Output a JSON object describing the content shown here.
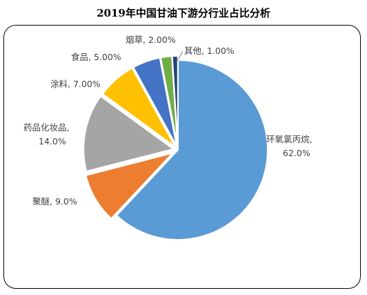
{
  "chart_data": {
    "type": "pie",
    "title": "2019年中国甘油下游分行业占比分析",
    "slices": [
      {
        "name": "环氧氯丙烷",
        "value": 62.0,
        "label": "62.0%",
        "color": "#5B9BD5"
      },
      {
        "name": "聚醚",
        "value": 9.0,
        "label": "9.0%",
        "color": "#ED7D31"
      },
      {
        "name": "药品化妆品",
        "value": 14.0,
        "label": "14.0%",
        "color": "#A5A5A5"
      },
      {
        "name": "涂料",
        "value": 7.0,
        "label": "7.00%",
        "color": "#FFC000"
      },
      {
        "name": "食品",
        "value": 5.0,
        "label": "5.00%",
        "color": "#4472C4"
      },
      {
        "name": "烟草",
        "value": 2.0,
        "label": "2.00%",
        "color": "#70AD47"
      },
      {
        "name": "其他",
        "value": 1.0,
        "label": "1.00%",
        "color": "#264478"
      }
    ],
    "label_lines": {
      "环氧氯丙烷": [
        "环氧氯丙烷,",
        "62.0%"
      ],
      "聚醚": [
        "聚醚, 9.0%"
      ],
      "药品化妆品": [
        "药品化妆品,",
        "14.0%"
      ],
      "涂料": [
        "涂料, 7.00%"
      ],
      "食品": [
        "食品, 5.00%"
      ],
      "烟草": [
        "烟草, 2.00%"
      ],
      "其他": [
        "其他, 1.00%"
      ]
    },
    "legend": "none (data labels)"
  }
}
